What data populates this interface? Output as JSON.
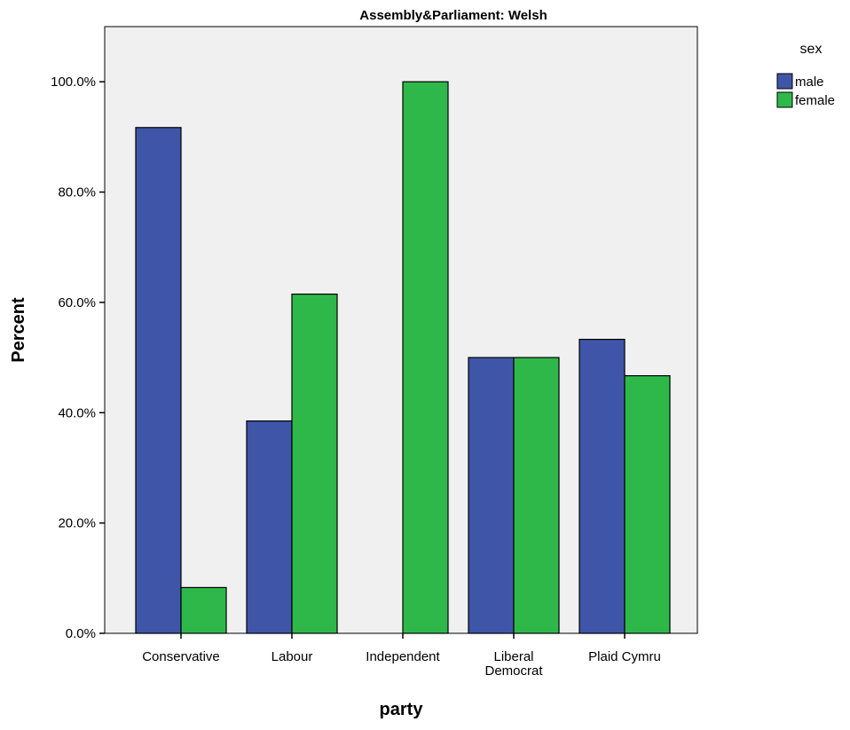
{
  "chart_data": {
    "type": "bar",
    "title": "Assembly&Parliament: Welsh",
    "xlabel": "party",
    "ylabel": "Percent",
    "categories": [
      [
        "Conservative"
      ],
      [
        "Labour"
      ],
      [
        "Independent"
      ],
      [
        "Liberal",
        "Democrat"
      ],
      [
        "Plaid Cymru"
      ]
    ],
    "series": [
      {
        "name": "male",
        "color": "#3f55a8",
        "values": [
          91.7,
          38.5,
          0.0,
          50.0,
          53.3
        ]
      },
      {
        "name": "female",
        "color": "#2fb84a",
        "values": [
          8.3,
          61.5,
          100.0,
          50.0,
          46.7
        ]
      }
    ],
    "ylim": [
      0,
      110
    ],
    "yticks": [
      0,
      20,
      40,
      60,
      80,
      100
    ],
    "ytick_labels": [
      "0.0%",
      "20.0%",
      "40.0%",
      "60.0%",
      "80.0%",
      "100.0%"
    ],
    "legend": {
      "title": "sex",
      "position": "top-right"
    },
    "plot_background": "#f0f0f0",
    "grid": false
  }
}
